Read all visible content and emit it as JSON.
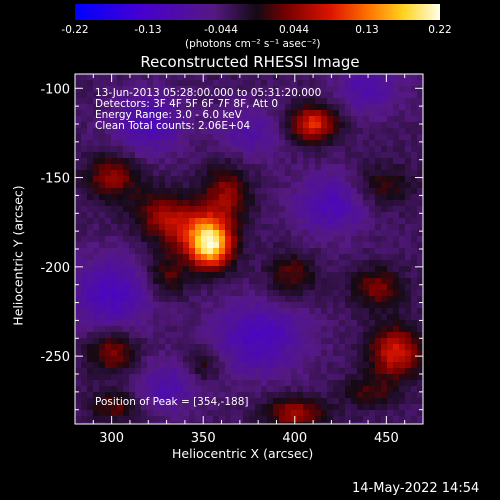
{
  "chart_data": {
    "type": "heatmap",
    "title": "Reconstructed RHESSI Image",
    "xlabel": "Heliocentric X (arcsec)",
    "ylabel": "Heliocentric Y (arcsec)",
    "xlim": [
      280,
      470
    ],
    "ylim": [
      -288,
      -92
    ],
    "xticks": [
      "300",
      "350",
      "400",
      "450"
    ],
    "yticks": [
      "-100",
      "-150",
      "-200",
      "-250"
    ],
    "colorbar": {
      "ticks": [
        "-0.22",
        "-0.13",
        "-0.044",
        "0.044",
        "0.13",
        "0.22"
      ],
      "units": "(photons cm⁻² s⁻¹ asec⁻²)",
      "range": [
        -0.22,
        0.22
      ]
    },
    "annotations": [
      "13-Jun-2013 05:28:00.000 to 05:31:20.000",
      "Detectors: 3F 4F 5F 6F 7F 8F, Att 0",
      "Energy Range: 3.0 - 6.0 keV",
      "Clean     Total counts: 2.06E+04"
    ],
    "peak_label": "Position of Peak = [354,-188]",
    "peak": [
      354,
      -188
    ],
    "sources": [
      {
        "x": 354,
        "y": -188,
        "amp": 0.22,
        "sx": 8,
        "sy": 9
      },
      {
        "x": 342,
        "y": -178,
        "amp": 0.09,
        "sx": 12,
        "sy": 10
      },
      {
        "x": 362,
        "y": -160,
        "amp": 0.08,
        "sx": 9,
        "sy": 12
      },
      {
        "x": 325,
        "y": -170,
        "amp": 0.06,
        "sx": 10,
        "sy": 10
      },
      {
        "x": 300,
        "y": -150,
        "amp": 0.08,
        "sx": 10,
        "sy": 9
      },
      {
        "x": 330,
        "y": -205,
        "amp": 0.06,
        "sx": 8,
        "sy": 8
      },
      {
        "x": 410,
        "y": -120,
        "amp": 0.13,
        "sx": 9,
        "sy": 7
      },
      {
        "x": 448,
        "y": -155,
        "amp": 0.05,
        "sx": 12,
        "sy": 8
      },
      {
        "x": 398,
        "y": -205,
        "amp": 0.06,
        "sx": 9,
        "sy": 9
      },
      {
        "x": 445,
        "y": -212,
        "amp": 0.07,
        "sx": 10,
        "sy": 8
      },
      {
        "x": 455,
        "y": -248,
        "amp": 0.12,
        "sx": 10,
        "sy": 10
      },
      {
        "x": 300,
        "y": -248,
        "amp": 0.08,
        "sx": 9,
        "sy": 8
      },
      {
        "x": 350,
        "y": -255,
        "amp": 0.05,
        "sx": 7,
        "sy": 7
      },
      {
        "x": 302,
        "y": -278,
        "amp": 0.06,
        "sx": 10,
        "sy": 6
      },
      {
        "x": 400,
        "y": -282,
        "amp": 0.09,
        "sx": 12,
        "sy": 6
      },
      {
        "x": 440,
        "y": -270,
        "amp": 0.05,
        "sx": 10,
        "sy": 6
      },
      {
        "x": 420,
        "y": -165,
        "amp": -0.07,
        "sx": 14,
        "sy": 12
      },
      {
        "x": 300,
        "y": -215,
        "amp": -0.08,
        "sx": 15,
        "sy": 14
      },
      {
        "x": 380,
        "y": -240,
        "amp": -0.08,
        "sx": 18,
        "sy": 14
      },
      {
        "x": 320,
        "y": -120,
        "amp": -0.07,
        "sx": 14,
        "sy": 12
      },
      {
        "x": 440,
        "y": -100,
        "amp": -0.06,
        "sx": 12,
        "sy": 10
      },
      {
        "x": 375,
        "y": -125,
        "amp": -0.05,
        "sx": 12,
        "sy": 10
      },
      {
        "x": 330,
        "y": -268,
        "amp": -0.06,
        "sx": 12,
        "sy": 10
      }
    ]
  },
  "timestamp": "14-May-2022 14:54"
}
